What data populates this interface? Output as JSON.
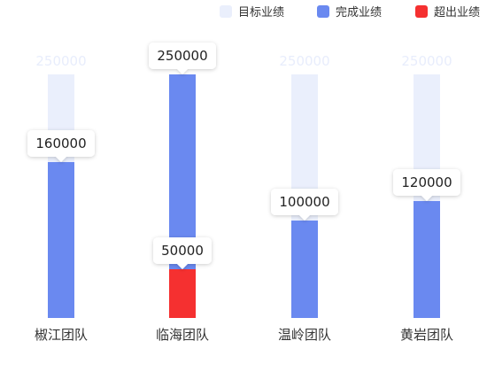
{
  "chart_data": {
    "type": "bar",
    "categories": [
      "椒江团队",
      "临海团队",
      "温岭团队",
      "黄岩团队"
    ],
    "ylim": [
      0,
      250000
    ],
    "legend_position": "top-right",
    "grid": false,
    "series": [
      {
        "name": "目标业绩",
        "key": "target",
        "color": "#eaeffc",
        "values": [
          250000,
          250000,
          250000,
          250000
        ]
      },
      {
        "name": "完成业绩",
        "key": "done",
        "color": "#6a89f0",
        "values": [
          160000,
          250000,
          100000,
          120000
        ]
      },
      {
        "name": "超出业绩",
        "key": "exceed",
        "color": "#f53030",
        "values": [
          0,
          50000,
          0,
          0
        ]
      }
    ],
    "target_labels": [
      "250000",
      "",
      "250000",
      "250000"
    ],
    "done_labels": [
      "160000",
      "250000",
      "100000",
      "120000"
    ],
    "exceed_labels": [
      "",
      "50000",
      "",
      ""
    ]
  }
}
